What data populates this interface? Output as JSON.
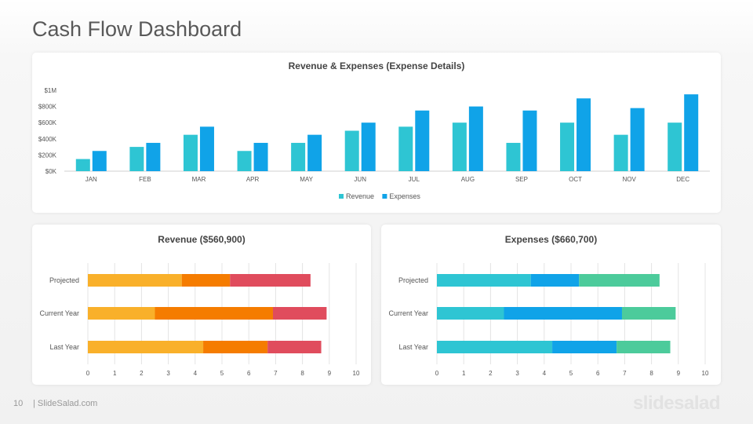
{
  "slide": {
    "title": "Cash Flow Dashboard",
    "page_number": "10",
    "site": "| SlideSalad.com",
    "brand": "slidesalad"
  },
  "chart_data": [
    {
      "type": "bar",
      "title": "Revenue & Expenses (Expense Details)",
      "categories": [
        "JAN",
        "FEB",
        "MAR",
        "APR",
        "MAY",
        "JUN",
        "JUL",
        "AUG",
        "SEP",
        "OCT",
        "NOV",
        "DEC"
      ],
      "series": [
        {
          "name": "Revenue",
          "color": "#2ec5d3",
          "values": [
            150000,
            300000,
            450000,
            250000,
            350000,
            500000,
            550000,
            600000,
            350000,
            600000,
            450000,
            600000
          ]
        },
        {
          "name": "Expenses",
          "color": "#10a3e8",
          "values": [
            250000,
            350000,
            550000,
            350000,
            450000,
            600000,
            750000,
            800000,
            750000,
            900000,
            780000,
            950000
          ]
        }
      ],
      "y_ticks": [
        "$0K",
        "$200K",
        "$400K",
        "$600K",
        "$800K",
        "$1M"
      ],
      "ylim": [
        0,
        1000000
      ],
      "legend": "bottom",
      "grid": false
    },
    {
      "type": "bar",
      "orientation": "horizontal",
      "stacked": true,
      "title": "Revenue ($560,900)",
      "categories": [
        "Projected",
        "Current Year",
        "Last Year"
      ],
      "x_ticks": [
        "0",
        "1",
        "2",
        "3",
        "4",
        "5",
        "6",
        "7",
        "8",
        "9",
        "10"
      ],
      "xlim": [
        0,
        10
      ],
      "grid": true,
      "segments": [
        {
          "colors": [
            "#f9b02a",
            "#f57c00",
            "#e04c5d"
          ],
          "values": [
            3.5,
            1.8,
            3.0
          ]
        },
        {
          "colors": [
            "#f9b02a",
            "#f57c00",
            "#e04c5d"
          ],
          "values": [
            2.5,
            4.4,
            2.0
          ]
        },
        {
          "colors": [
            "#f9b02a",
            "#f57c00",
            "#e04c5d"
          ],
          "values": [
            4.3,
            2.4,
            2.0
          ]
        }
      ]
    },
    {
      "type": "bar",
      "orientation": "horizontal",
      "stacked": true,
      "title": "Expenses ($660,700)",
      "categories": [
        "Projected",
        "Current Year",
        "Last Year"
      ],
      "x_ticks": [
        "0",
        "1",
        "2",
        "3",
        "4",
        "5",
        "6",
        "7",
        "8",
        "9",
        "10"
      ],
      "xlim": [
        0,
        10
      ],
      "grid": true,
      "segments": [
        {
          "colors": [
            "#2ec5d3",
            "#10a3e8",
            "#4ccb9b"
          ],
          "values": [
            3.5,
            1.8,
            3.0
          ]
        },
        {
          "colors": [
            "#2ec5d3",
            "#10a3e8",
            "#4ccb9b"
          ],
          "values": [
            2.5,
            4.4,
            2.0
          ]
        },
        {
          "colors": [
            "#2ec5d3",
            "#10a3e8",
            "#4ccb9b"
          ],
          "values": [
            4.3,
            2.4,
            2.0
          ]
        }
      ]
    }
  ]
}
